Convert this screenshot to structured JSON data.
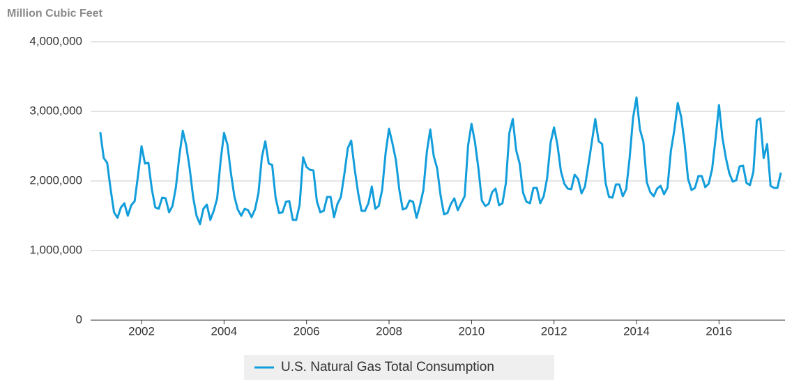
{
  "chart_data": {
    "type": "line",
    "y_axis_label": "Million Cubic Feet",
    "x": [
      2001,
      2001.083,
      2001.167,
      2001.25,
      2001.333,
      2001.417,
      2001.5,
      2001.583,
      2001.667,
      2001.75,
      2001.833,
      2001.917,
      2002,
      2002.083,
      2002.167,
      2002.25,
      2002.333,
      2002.417,
      2002.5,
      2002.583,
      2002.667,
      2002.75,
      2002.833,
      2002.917,
      2003,
      2003.083,
      2003.167,
      2003.25,
      2003.333,
      2003.417,
      2003.5,
      2003.583,
      2003.667,
      2003.75,
      2003.833,
      2003.917,
      2004,
      2004.083,
      2004.167,
      2004.25,
      2004.333,
      2004.417,
      2004.5,
      2004.583,
      2004.667,
      2004.75,
      2004.833,
      2004.917,
      2005,
      2005.083,
      2005.167,
      2005.25,
      2005.333,
      2005.417,
      2005.5,
      2005.583,
      2005.667,
      2005.75,
      2005.833,
      2005.917,
      2006,
      2006.083,
      2006.167,
      2006.25,
      2006.333,
      2006.417,
      2006.5,
      2006.583,
      2006.667,
      2006.75,
      2006.833,
      2006.917,
      2007,
      2007.083,
      2007.167,
      2007.25,
      2007.333,
      2007.417,
      2007.5,
      2007.583,
      2007.667,
      2007.75,
      2007.833,
      2007.917,
      2008,
      2008.083,
      2008.167,
      2008.25,
      2008.333,
      2008.417,
      2008.5,
      2008.583,
      2008.667,
      2008.75,
      2008.833,
      2008.917,
      2009,
      2009.083,
      2009.167,
      2009.25,
      2009.333,
      2009.417,
      2009.5,
      2009.583,
      2009.667,
      2009.75,
      2009.833,
      2009.917,
      2010,
      2010.083,
      2010.167,
      2010.25,
      2010.333,
      2010.417,
      2010.5,
      2010.583,
      2010.667,
      2010.75,
      2010.833,
      2010.917,
      2011,
      2011.083,
      2011.167,
      2011.25,
      2011.333,
      2011.417,
      2011.5,
      2011.583,
      2011.667,
      2011.75,
      2011.833,
      2011.917,
      2012,
      2012.083,
      2012.167,
      2012.25,
      2012.333,
      2012.417,
      2012.5,
      2012.583,
      2012.667,
      2012.75,
      2012.833,
      2012.917,
      2013,
      2013.083,
      2013.167,
      2013.25,
      2013.333,
      2013.417,
      2013.5,
      2013.583,
      2013.667,
      2013.75,
      2013.833,
      2013.917,
      2014,
      2014.083,
      2014.167,
      2014.25,
      2014.333,
      2014.417,
      2014.5,
      2014.583,
      2014.667,
      2014.75,
      2014.833,
      2014.917,
      2015,
      2015.083,
      2015.167,
      2015.25,
      2015.333,
      2015.417,
      2015.5,
      2015.583,
      2015.667,
      2015.75,
      2015.833,
      2015.917,
      2016,
      2016.083,
      2016.167,
      2016.25,
      2016.333,
      2016.417,
      2016.5,
      2016.583,
      2016.667,
      2016.75,
      2016.833,
      2016.917,
      2017,
      2017.083,
      2017.167,
      2017.25,
      2017.333,
      2017.417,
      2017.5
    ],
    "series": [
      {
        "name": "U.S. Natural Gas Total Consumption",
        "color": "#129ddb",
        "values": [
          2700000,
          2330000,
          2260000,
          1880000,
          1550000,
          1470000,
          1620000,
          1680000,
          1500000,
          1650000,
          1710000,
          2090000,
          2500000,
          2250000,
          2260000,
          1880000,
          1620000,
          1600000,
          1760000,
          1750000,
          1550000,
          1640000,
          1910000,
          2360000,
          2720000,
          2510000,
          2180000,
          1770000,
          1500000,
          1380000,
          1600000,
          1660000,
          1440000,
          1570000,
          1750000,
          2290000,
          2690000,
          2520000,
          2110000,
          1780000,
          1590000,
          1500000,
          1600000,
          1580000,
          1480000,
          1590000,
          1820000,
          2340000,
          2570000,
          2250000,
          2230000,
          1760000,
          1540000,
          1550000,
          1700000,
          1710000,
          1440000,
          1440000,
          1660000,
          2340000,
          2200000,
          2160000,
          2150000,
          1710000,
          1550000,
          1570000,
          1770000,
          1770000,
          1480000,
          1670000,
          1770000,
          2100000,
          2470000,
          2580000,
          2170000,
          1830000,
          1570000,
          1570000,
          1680000,
          1920000,
          1600000,
          1640000,
          1870000,
          2400000,
          2750000,
          2540000,
          2300000,
          1870000,
          1590000,
          1610000,
          1720000,
          1700000,
          1470000,
          1650000,
          1870000,
          2420000,
          2740000,
          2360000,
          2180000,
          1790000,
          1520000,
          1540000,
          1670000,
          1750000,
          1580000,
          1680000,
          1780000,
          2510000,
          2820000,
          2560000,
          2180000,
          1720000,
          1640000,
          1670000,
          1840000,
          1890000,
          1650000,
          1680000,
          1970000,
          2690000,
          2890000,
          2440000,
          2250000,
          1830000,
          1700000,
          1680000,
          1900000,
          1900000,
          1680000,
          1780000,
          2040000,
          2550000,
          2770000,
          2520000,
          2140000,
          1960000,
          1890000,
          1880000,
          2090000,
          2030000,
          1820000,
          1920000,
          2230000,
          2560000,
          2890000,
          2570000,
          2530000,
          1970000,
          1770000,
          1760000,
          1950000,
          1950000,
          1780000,
          1880000,
          2330000,
          2910000,
          3200000,
          2740000,
          2560000,
          1980000,
          1840000,
          1780000,
          1890000,
          1930000,
          1810000,
          1900000,
          2430000,
          2730000,
          3120000,
          2920000,
          2530000,
          2030000,
          1870000,
          1900000,
          2070000,
          2070000,
          1910000,
          1960000,
          2170000,
          2610000,
          3090000,
          2620000,
          2330000,
          2110000,
          1990000,
          2010000,
          2210000,
          2220000,
          1970000,
          1940000,
          2130000,
          2870000,
          2900000,
          2330000,
          2530000,
          1930000,
          1900000,
          1900000,
          2120000
        ]
      }
    ],
    "xlim": [
      2000.85,
      2017.6
    ],
    "xticks": [
      2002,
      2004,
      2006,
      2008,
      2010,
      2012,
      2014,
      2016
    ],
    "ylim": [
      0,
      4000000
    ],
    "yticks": [
      0,
      {
        "value": 1000000,
        "label": "1,000,000"
      },
      {
        "value": 2000000,
        "label": "2,000,000"
      },
      {
        "value": 3000000,
        "label": "3,000,000"
      },
      {
        "value": 4000000,
        "label": "4,000,000"
      }
    ],
    "grid": true,
    "legend": "bottom"
  }
}
